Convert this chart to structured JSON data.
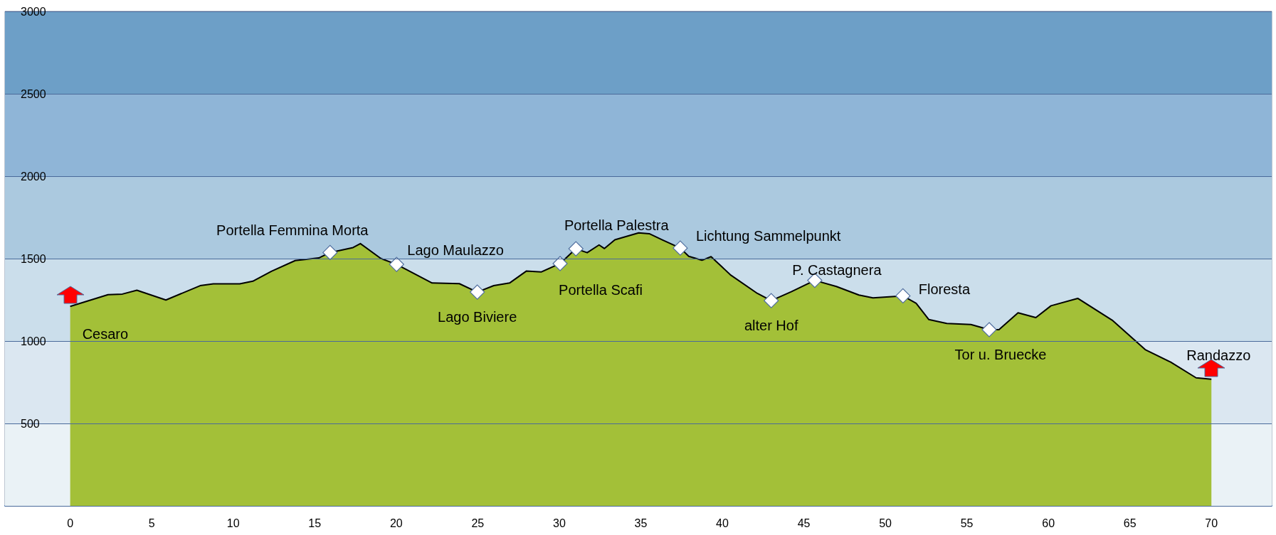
{
  "chart_data": {
    "type": "area",
    "xlim": [
      -4,
      73.7
    ],
    "xticks": [
      0,
      5,
      10,
      15,
      20,
      25,
      30,
      35,
      40,
      45,
      50,
      55,
      60,
      65,
      70
    ],
    "ylim": [
      0,
      3000
    ],
    "yticks": [
      500,
      1000,
      1500,
      2000,
      2500,
      3000
    ],
    "grid": "y",
    "series": [
      {
        "color": "#a3c038",
        "x": [
          0,
          2.32,
          3.2,
          4.09,
          5.87,
          7.97,
          8.78,
          10.4,
          11.2,
          12.34,
          13.8,
          15.25,
          15.94,
          17.35,
          17.8,
          19.05,
          20.02,
          22.2,
          23.87,
          24.97,
          25.98,
          26.95,
          27.99,
          28.89,
          30.05,
          31.02,
          31.71,
          32.44,
          32.77,
          33.41,
          34.87,
          35.52,
          36.32,
          37.42,
          37.94,
          38.75,
          39.31,
          40.53,
          42.15,
          43.0,
          44.25,
          45.67,
          47.0,
          48.38,
          49.24,
          51.08,
          51.89,
          52.67,
          53.77,
          55.25,
          56.37,
          56.97,
          58.14,
          59.23,
          60.16,
          61.8,
          63.91,
          65.94,
          67.5,
          69.06,
          70.0
        ],
        "values": [
          1210,
          1281,
          1285,
          1308,
          1249,
          1336,
          1347,
          1347,
          1363,
          1423,
          1488,
          1504,
          1537,
          1567,
          1591,
          1501,
          1465,
          1352,
          1348,
          1297,
          1336,
          1352,
          1425,
          1419,
          1470,
          1560,
          1536,
          1583,
          1561,
          1614,
          1656,
          1651,
          1614,
          1564,
          1514,
          1490,
          1512,
          1399,
          1289,
          1245,
          1300,
          1368,
          1331,
          1279,
          1262,
          1274,
          1229,
          1130,
          1107,
          1100,
          1069,
          1069,
          1171,
          1142,
          1214,
          1259,
          1127,
          948,
          872,
          777,
          768
        ]
      },
      {
        "type": "scatter",
        "marker": "diamond",
        "color": "#ffffff",
        "x": [
          15.94,
          20.02,
          24.97,
          30.05,
          31.02,
          37.42,
          43.0,
          45.67,
          51.08,
          56.37
        ],
        "values": [
          1537,
          1465,
          1297,
          1470,
          1560,
          1564,
          1245,
          1368,
          1274,
          1069
        ]
      }
    ],
    "bands": [
      {
        "axis": "y",
        "from": 0,
        "to": 500,
        "color": "#eaf2f6"
      },
      {
        "axis": "y",
        "from": 500,
        "to": 1000,
        "color": "#dbe7f1"
      },
      {
        "axis": "y",
        "from": 1000,
        "to": 1500,
        "color": "#cbdeeb"
      },
      {
        "axis": "y",
        "from": 1500,
        "to": 2000,
        "color": "#abc9df"
      },
      {
        "axis": "y",
        "from": 2000,
        "to": 2500,
        "color": "#8fb5d7"
      },
      {
        "axis": "y",
        "from": 2500,
        "to": 3000,
        "color": "#6d9fc7"
      }
    ],
    "annotations": [
      {
        "text": "Cesaro",
        "x": 0,
        "y": 1210
      },
      {
        "text": "Portella Femmina Morta",
        "x": 15.94,
        "y": 1537
      },
      {
        "text": "Lago Maulazzo",
        "x": 20.02,
        "y": 1465
      },
      {
        "text": "Lago Biviere",
        "x": 24.97,
        "y": 1297
      },
      {
        "text": "Portella Scafi",
        "x": 30.05,
        "y": 1470
      },
      {
        "text": "Portella Palestra",
        "x": 31.02,
        "y": 1560
      },
      {
        "text": "Lichtung Sammelpunkt",
        "x": 37.42,
        "y": 1564
      },
      {
        "text": "alter Hof",
        "x": 43.0,
        "y": 1245
      },
      {
        "text": "P. Castagnera",
        "x": 45.67,
        "y": 1368
      },
      {
        "text": "Floresta",
        "x": 51.08,
        "y": 1274
      },
      {
        "text": "Tor u. Bruecke",
        "x": 56.37,
        "y": 1069
      },
      {
        "text": "Randazzo",
        "x": 70.0,
        "y": 768
      }
    ]
  }
}
